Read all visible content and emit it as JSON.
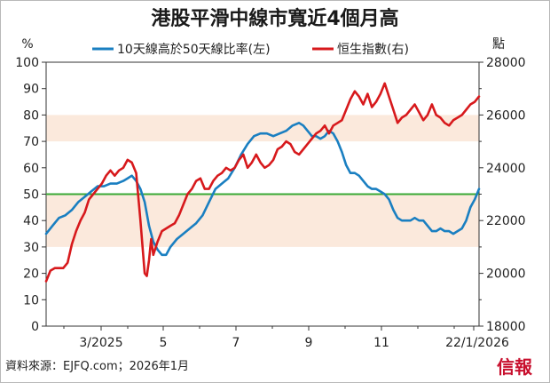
{
  "chart_data": {
    "type": "line",
    "title": "港股平滑中線市寬近4個月高",
    "legend": [
      "10天線高於50天線比率(左)",
      "恒生指數(右)"
    ],
    "left_unit": "%",
    "right_unit": "點",
    "left_ylim": [
      0,
      100
    ],
    "right_ylim": [
      18000,
      28000
    ],
    "left_ticks": [
      "0",
      "10",
      "20",
      "30",
      "40",
      "50",
      "60",
      "70",
      "80",
      "90",
      "100"
    ],
    "right_ticks": [
      "18000",
      "20000",
      "22000",
      "24000",
      "26000",
      "28000"
    ],
    "x_ticks": [
      "3/2025",
      "5",
      "7",
      "9",
      "11",
      "22/1/2026"
    ],
    "reference_line": 50,
    "shaded_bands": [
      [
        30,
        50
      ],
      [
        70,
        80
      ]
    ],
    "series": [
      {
        "name": "10天線高於50天線比率(左)",
        "color": "#1a7fc1",
        "axis": "left",
        "points": [
          [
            0,
            35
          ],
          [
            3,
            38
          ],
          [
            6,
            41
          ],
          [
            9,
            42
          ],
          [
            12,
            44
          ],
          [
            15,
            47
          ],
          [
            18,
            49
          ],
          [
            21,
            51
          ],
          [
            24,
            53
          ],
          [
            27,
            53
          ],
          [
            30,
            54
          ],
          [
            33,
            54
          ],
          [
            36,
            55
          ],
          [
            38,
            56
          ],
          [
            40,
            57
          ],
          [
            42,
            55
          ],
          [
            44,
            52
          ],
          [
            46,
            47
          ],
          [
            48,
            38
          ],
          [
            50,
            32
          ],
          [
            52,
            29
          ],
          [
            54,
            27
          ],
          [
            56,
            27
          ],
          [
            58,
            30
          ],
          [
            61,
            33
          ],
          [
            64,
            35
          ],
          [
            67,
            37
          ],
          [
            70,
            39
          ],
          [
            73,
            42
          ],
          [
            76,
            47
          ],
          [
            79,
            52
          ],
          [
            82,
            54
          ],
          [
            85,
            56
          ],
          [
            88,
            60
          ],
          [
            91,
            65
          ],
          [
            94,
            69
          ],
          [
            97,
            72
          ],
          [
            100,
            73
          ],
          [
            103,
            73
          ],
          [
            106,
            72
          ],
          [
            109,
            73
          ],
          [
            112,
            74
          ],
          [
            115,
            76
          ],
          [
            118,
            77
          ],
          [
            120,
            76
          ],
          [
            122,
            74
          ],
          [
            124,
            72
          ],
          [
            126,
            72
          ],
          [
            128,
            71
          ],
          [
            130,
            72
          ],
          [
            132,
            74
          ],
          [
            134,
            73
          ],
          [
            136,
            70
          ],
          [
            138,
            66
          ],
          [
            140,
            61
          ],
          [
            142,
            58
          ],
          [
            144,
            58
          ],
          [
            146,
            57
          ],
          [
            148,
            55
          ],
          [
            150,
            53
          ],
          [
            152,
            52
          ],
          [
            154,
            52
          ],
          [
            156,
            51
          ],
          [
            158,
            50
          ],
          [
            160,
            48
          ],
          [
            162,
            44
          ],
          [
            164,
            41
          ],
          [
            166,
            40
          ],
          [
            168,
            40
          ],
          [
            170,
            40
          ],
          [
            172,
            41
          ],
          [
            174,
            40
          ],
          [
            176,
            40
          ],
          [
            178,
            38
          ],
          [
            180,
            36
          ],
          [
            182,
            36
          ],
          [
            184,
            37
          ],
          [
            186,
            36
          ],
          [
            188,
            36
          ],
          [
            190,
            35
          ],
          [
            192,
            36
          ],
          [
            194,
            37
          ],
          [
            196,
            40
          ],
          [
            198,
            45
          ],
          [
            200,
            48
          ],
          [
            202,
            52
          ]
        ]
      },
      {
        "name": "恒生指數(右)",
        "color": "#d7191c",
        "axis": "right",
        "points": [
          [
            0,
            19700
          ],
          [
            2,
            20100
          ],
          [
            4,
            20200
          ],
          [
            6,
            20200
          ],
          [
            8,
            20200
          ],
          [
            10,
            20400
          ],
          [
            12,
            21100
          ],
          [
            14,
            21600
          ],
          [
            16,
            22000
          ],
          [
            18,
            22300
          ],
          [
            20,
            22800
          ],
          [
            22,
            23000
          ],
          [
            24,
            23200
          ],
          [
            26,
            23400
          ],
          [
            28,
            23700
          ],
          [
            30,
            23900
          ],
          [
            32,
            23700
          ],
          [
            34,
            23900
          ],
          [
            36,
            24000
          ],
          [
            38,
            24300
          ],
          [
            40,
            24200
          ],
          [
            42,
            23800
          ],
          [
            44,
            22000
          ],
          [
            46,
            20000
          ],
          [
            47,
            19900
          ],
          [
            48,
            20500
          ],
          [
            49,
            21300
          ],
          [
            50,
            20700
          ],
          [
            52,
            21200
          ],
          [
            54,
            21600
          ],
          [
            56,
            21700
          ],
          [
            58,
            21800
          ],
          [
            60,
            21900
          ],
          [
            62,
            22200
          ],
          [
            64,
            22600
          ],
          [
            66,
            23000
          ],
          [
            68,
            23200
          ],
          [
            70,
            23500
          ],
          [
            72,
            23600
          ],
          [
            74,
            23200
          ],
          [
            76,
            23200
          ],
          [
            78,
            23500
          ],
          [
            80,
            23700
          ],
          [
            82,
            23800
          ],
          [
            84,
            24000
          ],
          [
            86,
            23900
          ],
          [
            88,
            24000
          ],
          [
            90,
            24300
          ],
          [
            92,
            24500
          ],
          [
            94,
            24000
          ],
          [
            96,
            24200
          ],
          [
            98,
            24500
          ],
          [
            100,
            24200
          ],
          [
            102,
            24000
          ],
          [
            104,
            24100
          ],
          [
            106,
            24300
          ],
          [
            108,
            24700
          ],
          [
            110,
            24800
          ],
          [
            112,
            25000
          ],
          [
            114,
            24900
          ],
          [
            116,
            24600
          ],
          [
            118,
            24500
          ],
          [
            120,
            24700
          ],
          [
            122,
            24900
          ],
          [
            124,
            25100
          ],
          [
            126,
            25300
          ],
          [
            128,
            25400
          ],
          [
            130,
            25600
          ],
          [
            132,
            25300
          ],
          [
            134,
            25600
          ],
          [
            136,
            25700
          ],
          [
            138,
            25800
          ],
          [
            140,
            26200
          ],
          [
            142,
            26600
          ],
          [
            144,
            26900
          ],
          [
            146,
            26700
          ],
          [
            148,
            26400
          ],
          [
            150,
            26800
          ],
          [
            152,
            26300
          ],
          [
            154,
            26500
          ],
          [
            156,
            26800
          ],
          [
            158,
            27200
          ],
          [
            160,
            26700
          ],
          [
            162,
            26200
          ],
          [
            164,
            25700
          ],
          [
            166,
            25900
          ],
          [
            168,
            26000
          ],
          [
            170,
            26200
          ],
          [
            172,
            26400
          ],
          [
            174,
            26100
          ],
          [
            176,
            25800
          ],
          [
            178,
            26000
          ],
          [
            180,
            26400
          ],
          [
            182,
            26000
          ],
          [
            184,
            25900
          ],
          [
            186,
            25700
          ],
          [
            188,
            25600
          ],
          [
            190,
            25800
          ],
          [
            192,
            25900
          ],
          [
            194,
            26000
          ],
          [
            196,
            26200
          ],
          [
            198,
            26400
          ],
          [
            200,
            26500
          ],
          [
            202,
            26700
          ]
        ]
      }
    ]
  },
  "footer": {
    "source": "資料來源：EJFQ.com；2026年1月",
    "brand": "信報"
  },
  "colors": {
    "blue": "#1a7fc1",
    "red": "#d7191c",
    "green": "#3aa935",
    "band": "#fbe9dc"
  }
}
